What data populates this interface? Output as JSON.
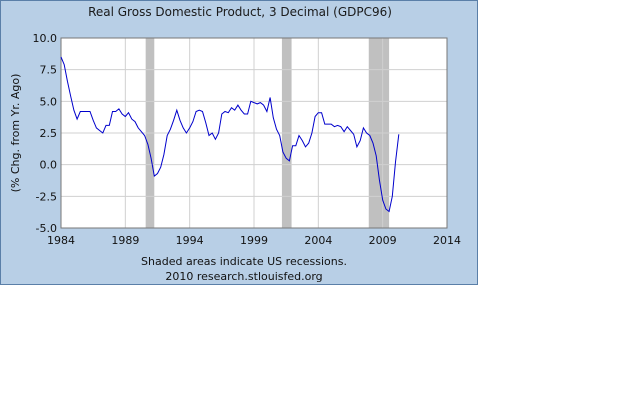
{
  "chart_data": {
    "type": "line",
    "title": "Real Gross Domestic Product, 3 Decimal (GDPC96)",
    "xlabel": "",
    "ylabel": "(% Chg. from Yr. Ago)",
    "xlim": [
      1984,
      2014
    ],
    "ylim": [
      -5.0,
      10.0
    ],
    "x_ticks": [
      "1984",
      "1989",
      "1994",
      "1999",
      "2004",
      "2009",
      "2014"
    ],
    "y_ticks": [
      "10.0",
      "7.5",
      "5.0",
      "2.5",
      "0.0",
      "-2.5",
      "-5.0"
    ],
    "grid": true,
    "series": [
      {
        "color": "#0000cc",
        "x": [
          1984.0,
          1984.25,
          1984.5,
          1984.75,
          1985.0,
          1985.25,
          1985.5,
          1985.75,
          1986.0,
          1986.25,
          1986.5,
          1986.75,
          1987.0,
          1987.25,
          1987.5,
          1987.75,
          1988.0,
          1988.25,
          1988.5,
          1988.75,
          1989.0,
          1989.25,
          1989.5,
          1989.75,
          1990.0,
          1990.25,
          1990.5,
          1990.75,
          1991.0,
          1991.25,
          1991.5,
          1991.75,
          1992.0,
          1992.25,
          1992.5,
          1992.75,
          1993.0,
          1993.25,
          1993.5,
          1993.75,
          1994.0,
          1994.25,
          1994.5,
          1994.75,
          1995.0,
          1995.25,
          1995.5,
          1995.75,
          1996.0,
          1996.25,
          1996.5,
          1996.75,
          1997.0,
          1997.25,
          1997.5,
          1997.75,
          1998.0,
          1998.25,
          1998.5,
          1998.75,
          1999.0,
          1999.25,
          1999.5,
          1999.75,
          2000.0,
          2000.25,
          2000.5,
          2000.75,
          2001.0,
          2001.25,
          2001.5,
          2001.75,
          2002.0,
          2002.25,
          2002.5,
          2002.75,
          2003.0,
          2003.25,
          2003.5,
          2003.75,
          2004.0,
          2004.25,
          2004.5,
          2004.75,
          2005.0,
          2005.25,
          2005.5,
          2005.75,
          2006.0,
          2006.25,
          2006.5,
          2006.75,
          2007.0,
          2007.25,
          2007.5,
          2007.75,
          2008.0,
          2008.25,
          2008.5,
          2008.75,
          2009.0,
          2009.25,
          2009.5,
          2009.75,
          2010.0,
          2010.25
        ],
        "values": [
          8.5,
          7.9,
          6.6,
          5.4,
          4.3,
          3.6,
          4.2,
          4.2,
          4.2,
          4.2,
          3.5,
          2.9,
          2.7,
          2.5,
          3.1,
          3.1,
          4.2,
          4.2,
          4.4,
          4.0,
          3.8,
          4.1,
          3.6,
          3.4,
          2.9,
          2.6,
          2.3,
          1.6,
          0.5,
          -0.9,
          -0.7,
          -0.2,
          0.8,
          2.3,
          2.8,
          3.5,
          4.3,
          3.5,
          2.9,
          2.5,
          2.9,
          3.4,
          4.2,
          4.3,
          4.2,
          3.3,
          2.3,
          2.5,
          2.0,
          2.5,
          4.0,
          4.2,
          4.1,
          4.5,
          4.3,
          4.7,
          4.3,
          4.0,
          4.0,
          5.0,
          4.9,
          4.8,
          4.9,
          4.7,
          4.2,
          5.3,
          3.7,
          2.8,
          2.3,
          1.0,
          0.5,
          0.3,
          1.5,
          1.5,
          2.3,
          1.9,
          1.4,
          1.7,
          2.5,
          3.8,
          4.1,
          4.1,
          3.2,
          3.2,
          3.2,
          3.0,
          3.1,
          3.0,
          2.6,
          3.0,
          2.7,
          2.4,
          1.4,
          1.9,
          2.9,
          2.5,
          2.3,
          1.7,
          0.7,
          -1.2,
          -2.8,
          -3.5,
          -3.7,
          -2.5,
          0.2,
          2.4
        ]
      }
    ],
    "recessions": [
      [
        1990.58,
        1991.25
      ],
      [
        2001.17,
        2001.92
      ],
      [
        2007.92,
        2009.5
      ]
    ],
    "footnote_lines": [
      "Shaded areas indicate US recessions.",
      "2010 research.stlouisfed.org"
    ]
  }
}
